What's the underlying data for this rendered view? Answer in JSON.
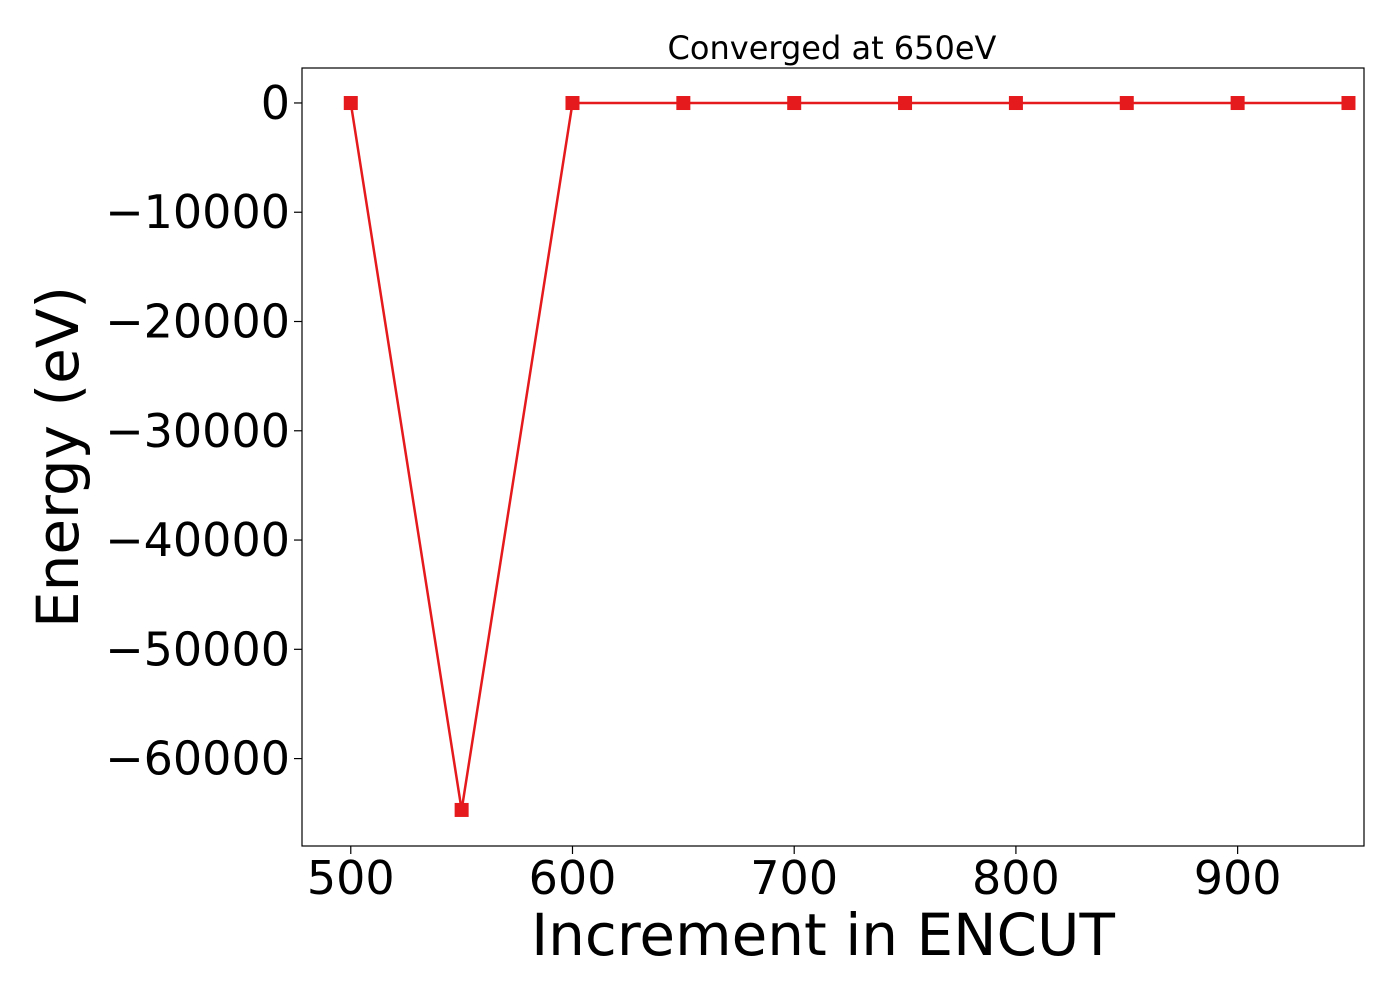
{
  "chart_data": {
    "type": "line",
    "title": "Converged at 650eV",
    "xlabel": "Increment in ENCUT",
    "ylabel": "Energy (eV)",
    "xlim": [
      478,
      957
    ],
    "ylim": [
      -68000,
      3200
    ],
    "x_ticks": [
      500,
      600,
      700,
      800,
      900
    ],
    "x_tick_labels": [
      "500",
      "600",
      "700",
      "800",
      "900"
    ],
    "y_ticks": [
      0,
      -10000,
      -20000,
      -30000,
      -40000,
      -50000,
      -60000
    ],
    "y_tick_labels": [
      "0",
      "−10000",
      "−20000",
      "−30000",
      "−40000",
      "−50000",
      "−60000"
    ],
    "grid": false,
    "series": [
      {
        "color": "#e41a1c",
        "marker": "square",
        "x": [
          500,
          550,
          600,
          650,
          700,
          750,
          800,
          850,
          900,
          950
        ],
        "y": [
          -5,
          -64700,
          -5,
          -5,
          -5,
          -5,
          -5,
          -5,
          -5,
          -5
        ]
      }
    ]
  }
}
